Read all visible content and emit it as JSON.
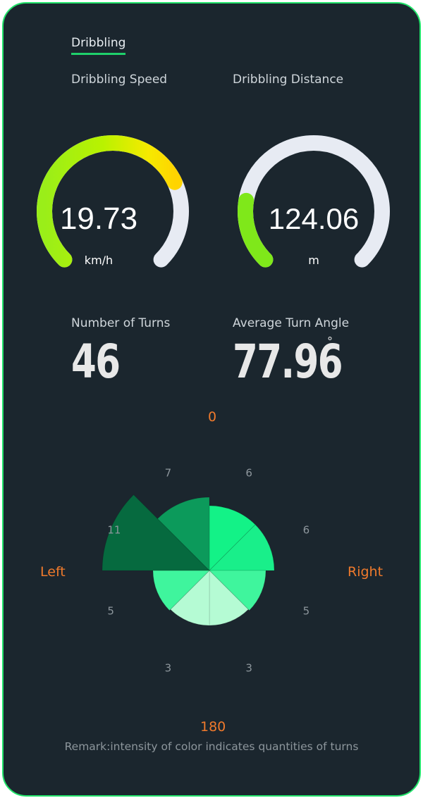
{
  "tab": {
    "label": "Dribbling"
  },
  "speed": {
    "label": "Dribbling Speed",
    "value": "19.73",
    "unit": "km/h",
    "fraction": 0.74
  },
  "distance": {
    "label": "Dribbling Distance",
    "value": "124.06",
    "unit": "m",
    "fraction": 0.2
  },
  "turns": {
    "label": "Number of Turns",
    "value": "46"
  },
  "angle": {
    "label": "Average Turn Angle",
    "value": "77.96",
    "unit": "°"
  },
  "rose": {
    "top_label": "0",
    "bottom_label": "180",
    "left_label": "Left",
    "right_label": "Right",
    "sector_counts": [
      "6",
      "6",
      "5",
      "3",
      "3",
      "5",
      "11",
      "7"
    ],
    "sector_colors": [
      "#13f287",
      "#19ef8a",
      "#3ff59d",
      "#b5fbd4",
      "#b5fbd4",
      "#3ff59d",
      "#066a3f",
      "#0c9a5b"
    ]
  },
  "remark": "Remark:intensity of color indicates quantities of turns"
}
